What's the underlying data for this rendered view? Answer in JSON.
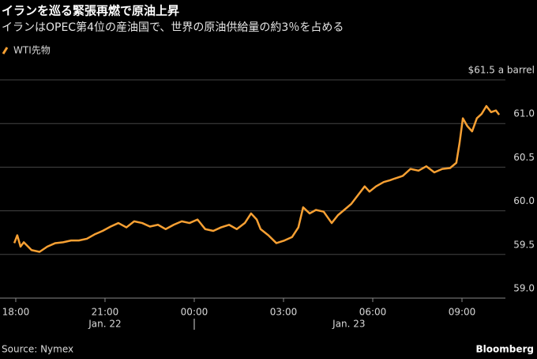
{
  "chart_data": {
    "type": "line",
    "title": "イランを巡る緊張再燃で原油上昇",
    "subtitle": "イランはOPEC第4位の産油国で、世界の原油供給量の約3％を占める",
    "source": "Source: Nymex",
    "brand": "Bloomberg",
    "x": [
      -0.05,
      0.05,
      0.16,
      0.27,
      0.53,
      0.8,
      1.06,
      1.33,
      1.59,
      1.86,
      2.12,
      2.39,
      2.65,
      2.92,
      3.19,
      3.45,
      3.72,
      3.98,
      4.25,
      4.51,
      4.78,
      5.04,
      5.31,
      5.58,
      5.84,
      6.11,
      6.37,
      6.64,
      6.9,
      7.17,
      7.43,
      7.7,
      7.91,
      8.1,
      8.23,
      8.49,
      8.76,
      9.03,
      9.29,
      9.5,
      9.66,
      9.88,
      10.09,
      10.35,
      10.62,
      10.83,
      11.04,
      11.28,
      11.55,
      11.73,
      11.89,
      12.11,
      12.37,
      12.58,
      12.74,
      13.01,
      13.27,
      13.54,
      13.8,
      14.07,
      14.34,
      14.6,
      14.81,
      14.92,
      15.03,
      15.18,
      15.34,
      15.5,
      15.66,
      15.82,
      15.98,
      16.14,
      16.25
    ],
    "series": [
      {
        "name": "WTI先物",
        "color": "#f7a033",
        "values": [
          59.63,
          59.72,
          59.59,
          59.64,
          59.55,
          59.53,
          59.59,
          59.63,
          59.64,
          59.66,
          59.66,
          59.68,
          59.73,
          59.77,
          59.82,
          59.86,
          59.81,
          59.88,
          59.86,
          59.82,
          59.84,
          59.79,
          59.84,
          59.88,
          59.86,
          59.9,
          59.79,
          59.77,
          59.81,
          59.84,
          59.79,
          59.86,
          59.97,
          59.9,
          59.79,
          59.72,
          59.63,
          59.66,
          59.7,
          59.81,
          60.04,
          59.97,
          60.01,
          59.99,
          59.86,
          59.95,
          60.01,
          60.08,
          60.2,
          60.28,
          60.22,
          60.28,
          60.33,
          60.35,
          60.37,
          60.4,
          60.48,
          60.46,
          60.51,
          60.44,
          60.48,
          60.49,
          60.55,
          60.78,
          61.06,
          60.97,
          60.91,
          61.06,
          61.11,
          61.2,
          61.13,
          61.15,
          61.1
        ]
      }
    ],
    "xlim": [
      -0.53,
      16.46
    ],
    "xticks": [
      {
        "value": 0,
        "label": "18:00"
      },
      {
        "value": 3,
        "label": "21:00"
      },
      {
        "value": 6,
        "label": "00:00"
      },
      {
        "value": 9,
        "label": "03:00"
      },
      {
        "value": 12,
        "label": "06:00"
      },
      {
        "value": 15,
        "label": "09:00"
      }
    ],
    "date_labels": [
      {
        "value": 3,
        "label": "Jan. 22"
      },
      {
        "value": 11.2,
        "label": "Jan. 23"
      }
    ],
    "day_boundary": 6,
    "ylim": [
      59.0,
      61.5
    ],
    "yticks": [
      {
        "value": 59.0,
        "label": "59.0"
      },
      {
        "value": 59.5,
        "label": "59.5"
      },
      {
        "value": 60.0,
        "label": "60.0"
      },
      {
        "value": 60.5,
        "label": "60.5"
      },
      {
        "value": 61.0,
        "label": "61.0"
      },
      {
        "value": 61.5,
        "label": "$61.5 a barrel"
      }
    ],
    "grid": true
  }
}
